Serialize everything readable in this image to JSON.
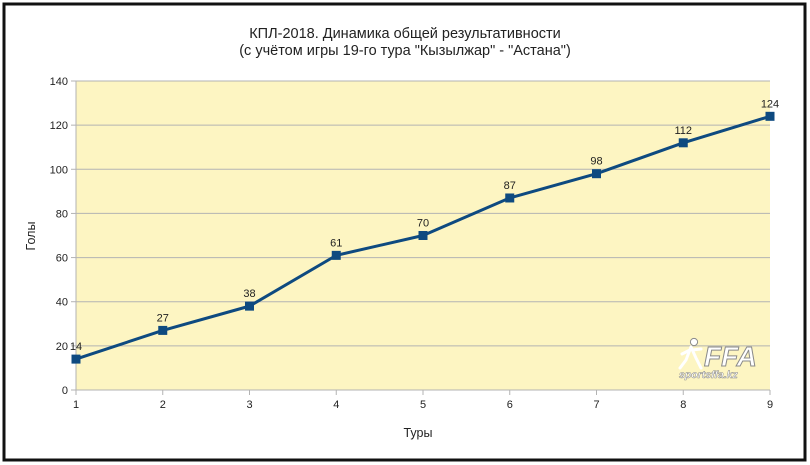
{
  "chart_data": {
    "type": "line",
    "title": "КПЛ-2018. Динамика общей результативности",
    "subtitle": "(с учётом игры 19-го тура \"Кызылжар\" - \"Астана\")",
    "xlabel": "Туры",
    "ylabel": "Голы",
    "x": [
      1,
      2,
      3,
      4,
      5,
      6,
      7,
      8,
      9
    ],
    "values": [
      14,
      27,
      38,
      61,
      70,
      87,
      98,
      112,
      124
    ],
    "data_labels": [
      "14",
      "27",
      "38",
      "61",
      "70",
      "87",
      "98",
      "112",
      "124"
    ],
    "x_tick_labels": [
      "1",
      "2",
      "3",
      "4",
      "5",
      "6",
      "7",
      "8",
      "9"
    ],
    "y_tick_labels": [
      "0",
      "20",
      "40",
      "60",
      "80",
      "100",
      "120",
      "140"
    ],
    "xlim": [
      1,
      9
    ],
    "ylim": [
      0,
      140
    ],
    "y_ticks": [
      0,
      20,
      40,
      60,
      80,
      100,
      120,
      140
    ],
    "grid": true,
    "legend": "none",
    "colors": {
      "line": "#0e4a80",
      "plot_background": "#fdf5c2",
      "grid": "#b3b3b3",
      "frame_border": "#111111"
    }
  },
  "watermark": {
    "logo_text": "FFA",
    "site_text": "sportsffa.kz",
    "icon": "runner-icon"
  }
}
